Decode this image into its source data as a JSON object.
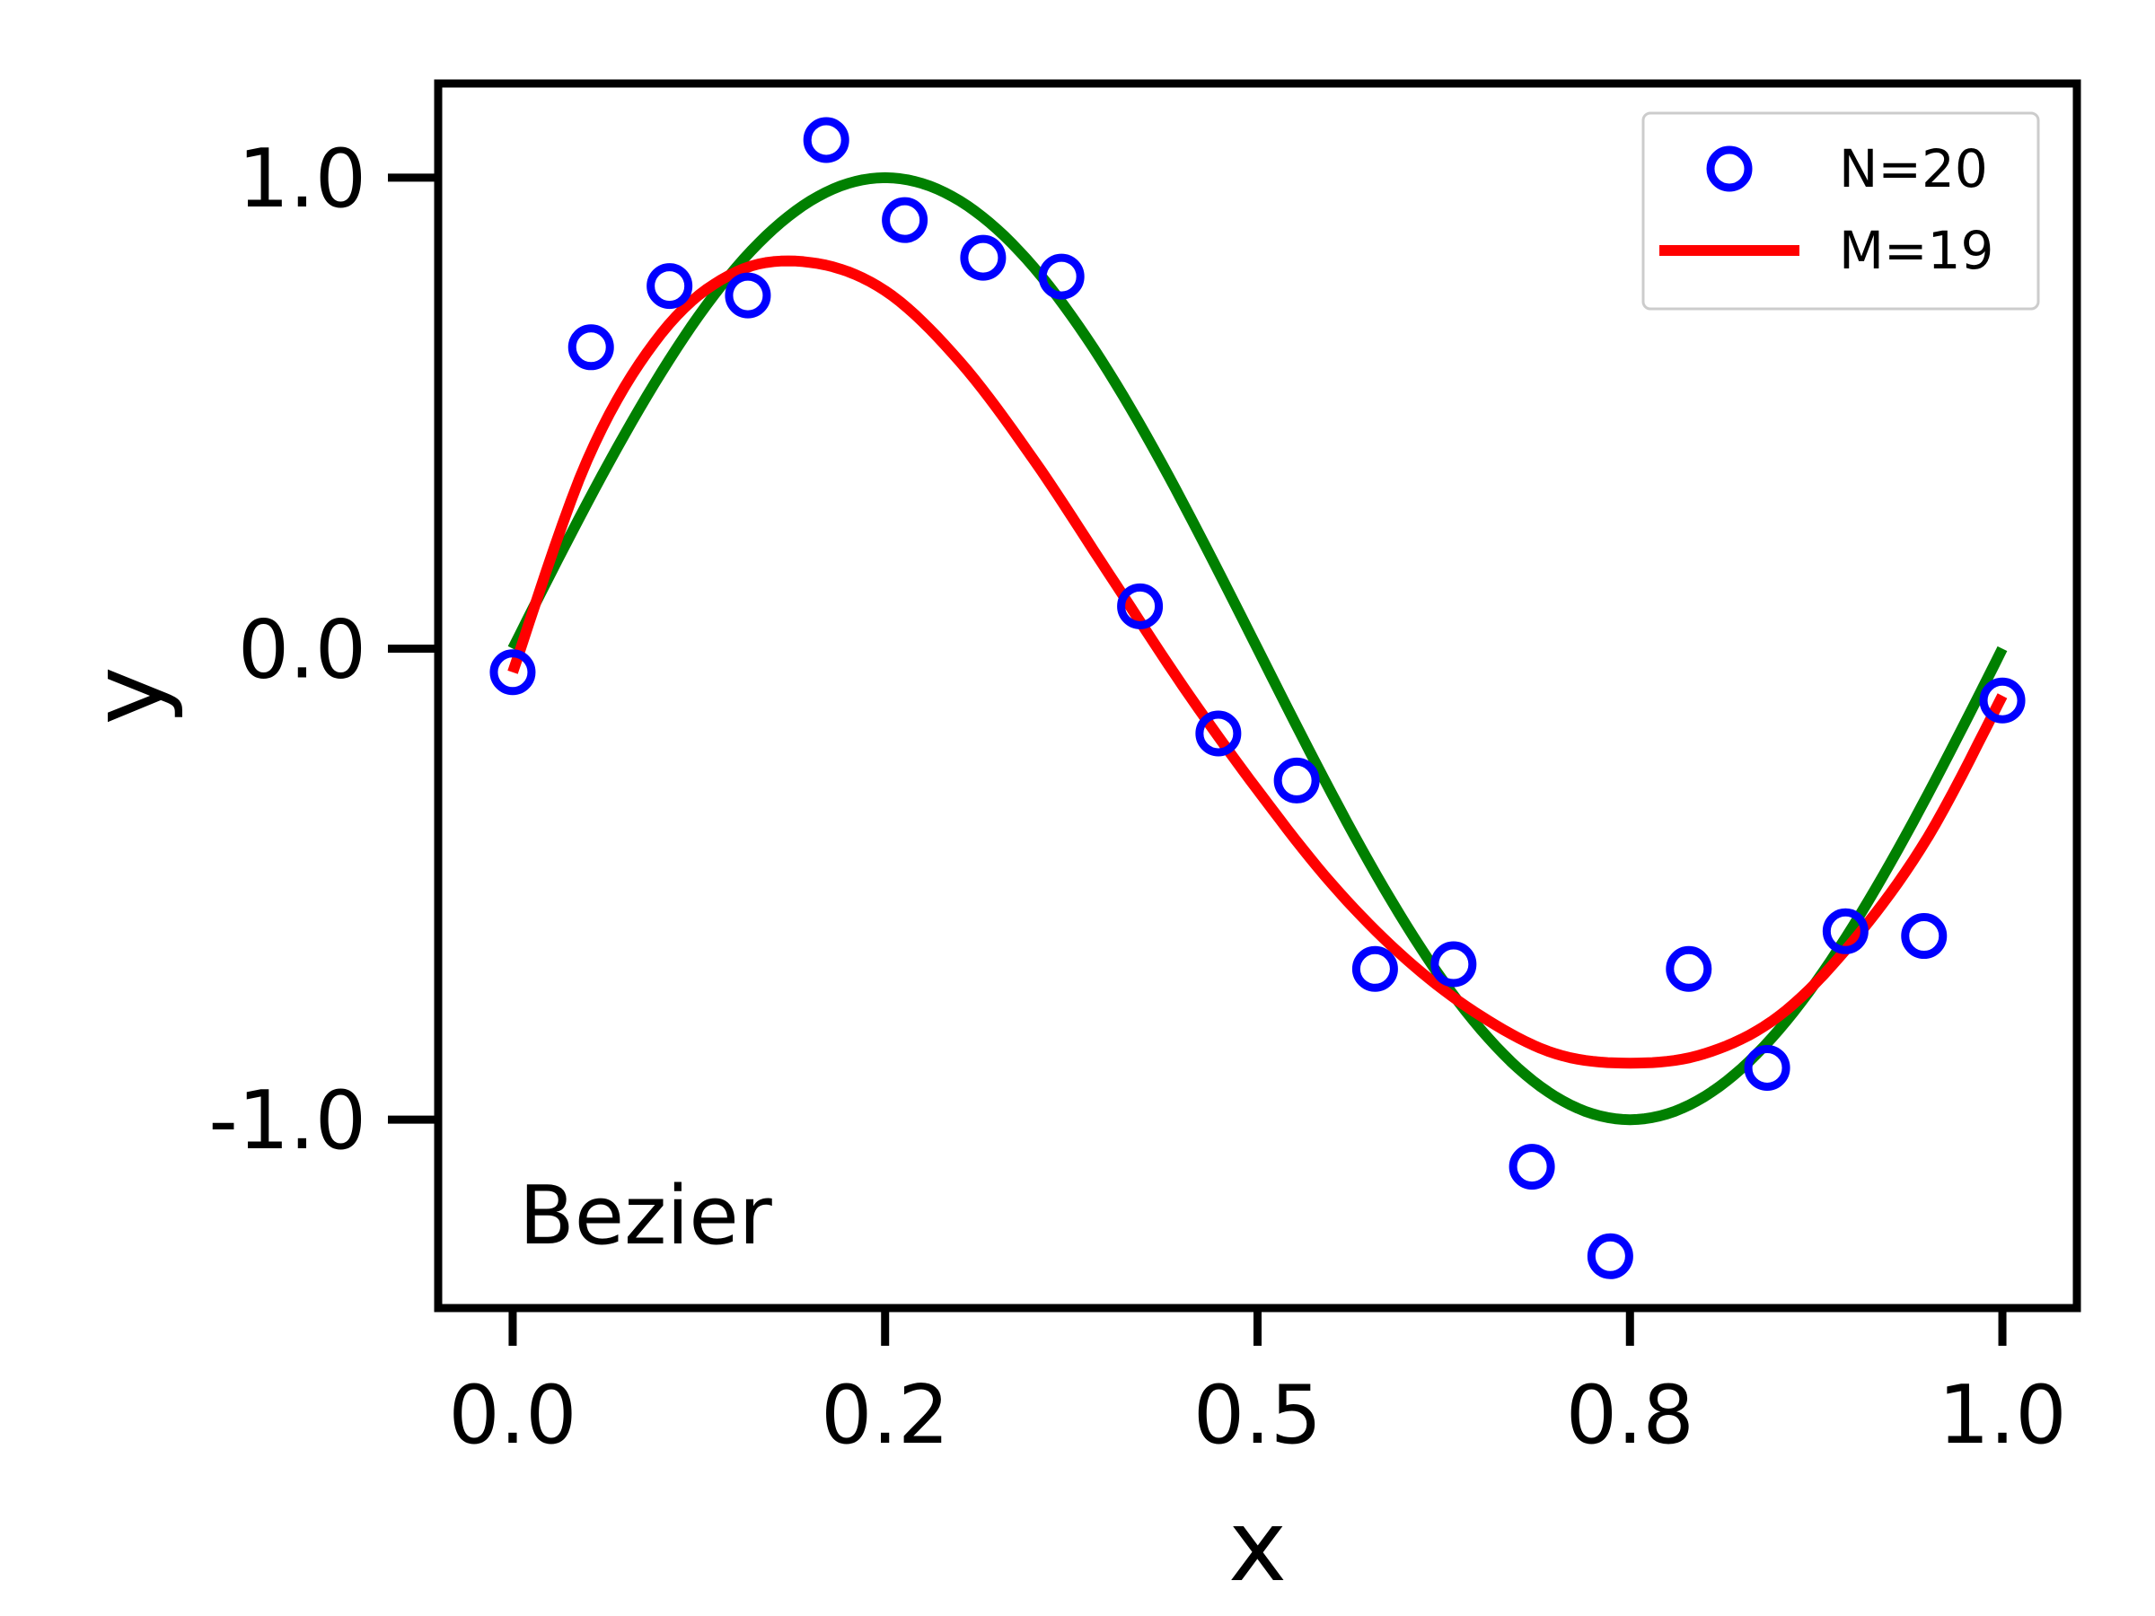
{
  "chart_data": {
    "type": "scatter",
    "title": "",
    "xlabel": "x",
    "ylabel": "y",
    "xlim": [
      -0.05,
      1.05
    ],
    "ylim": [
      -1.4,
      1.2
    ],
    "x_ticks": [
      0.0,
      0.25,
      0.5,
      0.75,
      1.0
    ],
    "x_tick_labels": [
      "0.0",
      "0.2",
      "0.5",
      "0.8",
      "1.0"
    ],
    "y_ticks": [
      -1.0,
      0.0,
      1.0
    ],
    "y_tick_labels": [
      "-1.0",
      "0.0",
      "1.0"
    ],
    "grid": false,
    "legend_position": "top-right",
    "annotation": "Bezier",
    "series": [
      {
        "name": "N=20",
        "kind": "scatter",
        "marker": "open-circle",
        "color": "#0000ff",
        "x": [
          0.0,
          0.0526,
          0.1053,
          0.1579,
          0.2105,
          0.2632,
          0.3158,
          0.3684,
          0.4211,
          0.4737,
          0.5263,
          0.5789,
          0.6316,
          0.6842,
          0.7368,
          0.7895,
          0.8421,
          0.8947,
          0.9474,
          1.0
        ],
        "y": [
          -0.05,
          0.64,
          0.77,
          0.75,
          1.08,
          0.91,
          0.83,
          0.79,
          0.09,
          -0.18,
          -0.28,
          -0.68,
          -0.67,
          -1.1,
          -1.29,
          -0.68,
          -0.89,
          -0.6,
          -0.61,
          -0.11
        ]
      },
      {
        "name": "",
        "kind": "line",
        "color": "#008000",
        "function": "sin(2*pi*x)",
        "x_range": [
          0.0,
          1.0
        ]
      },
      {
        "name": "M=19",
        "kind": "line",
        "color": "#ff0000",
        "x": [
          0.0,
          0.05,
          0.1,
          0.15,
          0.2,
          0.25,
          0.3,
          0.35,
          0.4,
          0.45,
          0.5,
          0.55,
          0.6,
          0.65,
          0.7,
          0.75,
          0.8,
          0.85,
          0.9,
          0.95,
          1.0
        ],
        "y": [
          -0.05,
          0.4,
          0.67,
          0.8,
          0.82,
          0.76,
          0.61,
          0.4,
          0.16,
          -0.08,
          -0.3,
          -0.5,
          -0.66,
          -0.78,
          -0.86,
          -0.88,
          -0.86,
          -0.78,
          -0.62,
          -0.4,
          -0.1
        ]
      }
    ]
  }
}
